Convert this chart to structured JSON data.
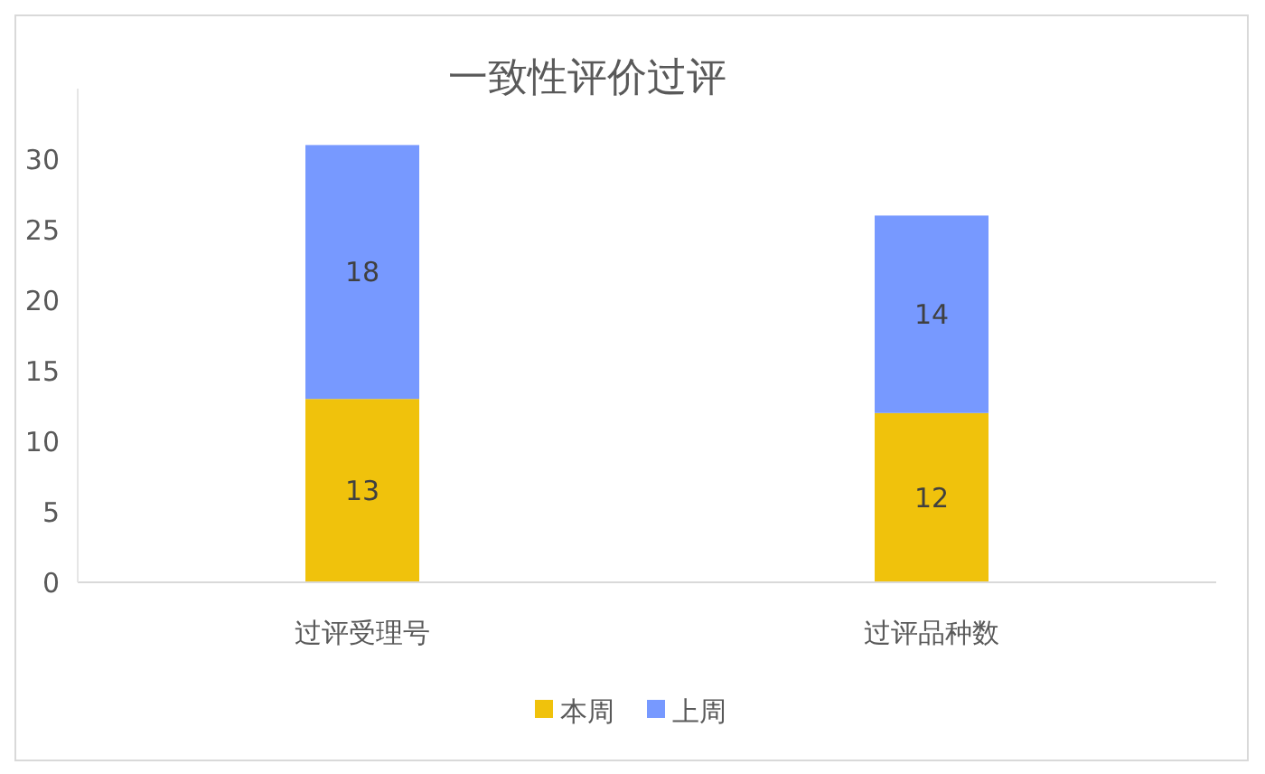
{
  "chart_data": {
    "type": "bar",
    "title": "一致性评价过评",
    "categories": [
      "过评受理号",
      "过评品种数"
    ],
    "stacked": true,
    "series": [
      {
        "name": "本周",
        "color": "#f0c20c",
        "values": [
          13,
          12
        ]
      },
      {
        "name": "上周",
        "color": "#7799ff",
        "values": [
          18,
          14
        ]
      }
    ],
    "ylim": [
      0,
      35
    ],
    "yticks": [
      0,
      5,
      10,
      15,
      20,
      25,
      30
    ],
    "data_labels": true,
    "legend": "bottom",
    "grid": false
  }
}
